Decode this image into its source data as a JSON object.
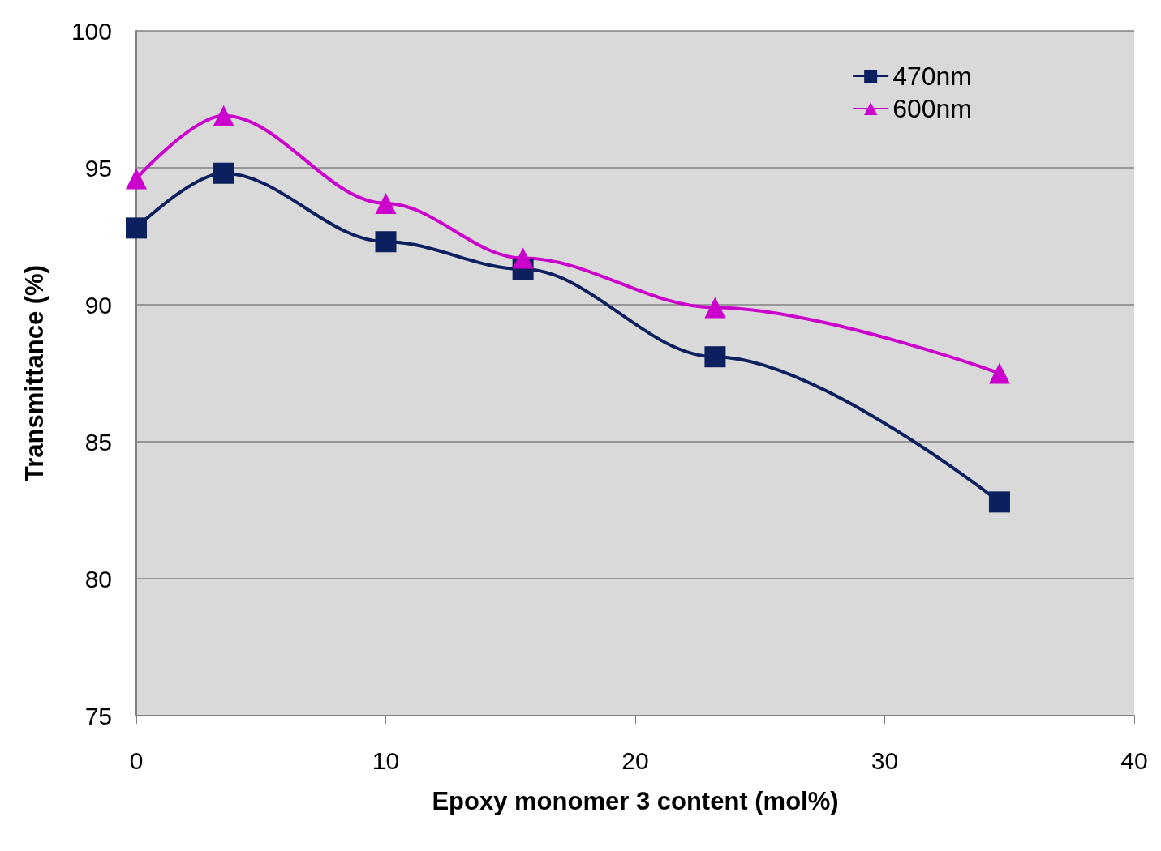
{
  "chart_data": {
    "type": "line",
    "xlabel": "Epoxy monomer 3 content (mol%)",
    "ylabel": "Transmittance (%)",
    "xlim": [
      0,
      40
    ],
    "xticks": [
      0,
      10,
      20,
      30,
      40
    ],
    "ylim": [
      75,
      100
    ],
    "yticks": [
      75,
      80,
      85,
      90,
      95,
      100
    ],
    "grid": "y",
    "legend": "top right",
    "line_style": "solid",
    "series": [
      {
        "name": "470nm",
        "color": "#0c1f5e",
        "marker": "square",
        "x": [
          0,
          3.5,
          10,
          15.5,
          23.2,
          34.6
        ],
        "values": [
          92.8,
          94.8,
          92.3,
          91.3,
          88.1,
          82.8
        ]
      },
      {
        "name": "600nm",
        "color": "#cc00cc",
        "marker": "triangle",
        "x": [
          0,
          3.5,
          10,
          15.5,
          23.2,
          34.6
        ],
        "values": [
          94.6,
          96.9,
          93.7,
          91.7,
          89.9,
          87.5
        ]
      }
    ]
  }
}
